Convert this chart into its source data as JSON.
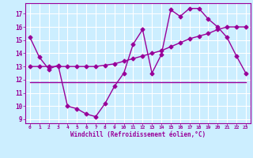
{
  "x": [
    0,
    1,
    2,
    3,
    4,
    5,
    6,
    7,
    8,
    9,
    10,
    11,
    12,
    13,
    14,
    15,
    16,
    17,
    18,
    19,
    20,
    21,
    22,
    23
  ],
  "line1": [
    15.2,
    13.7,
    12.8,
    13.1,
    10.0,
    9.8,
    9.4,
    9.2,
    10.2,
    11.5,
    12.5,
    14.7,
    15.8,
    12.5,
    13.9,
    17.3,
    16.8,
    17.4,
    17.4,
    16.6,
    16.0,
    15.2,
    13.8,
    12.5
  ],
  "line2": [
    13.0,
    13.0,
    13.0,
    13.0,
    13.0,
    13.0,
    13.0,
    13.0,
    13.1,
    13.2,
    13.4,
    13.6,
    13.8,
    14.0,
    14.2,
    14.5,
    14.8,
    15.1,
    15.3,
    15.5,
    15.8,
    16.0,
    16.0,
    16.0
  ],
  "line3": [
    11.8,
    11.8,
    11.8,
    11.8,
    11.8,
    11.8,
    11.8,
    11.8,
    11.8,
    11.8,
    11.8,
    11.8,
    11.8,
    11.8,
    11.8,
    11.8,
    11.8,
    11.8,
    11.8,
    11.8,
    11.8,
    11.8,
    11.8,
    11.8
  ],
  "line_color": "#990099",
  "bg_color": "#cceeff",
  "grid_color": "#aaddee",
  "xlabel": "Windchill (Refroidissement éolien,°C)",
  "xlim": [
    -0.5,
    23.5
  ],
  "ylim": [
    8.7,
    17.8
  ],
  "xticks": [
    0,
    1,
    2,
    3,
    4,
    5,
    6,
    7,
    8,
    9,
    10,
    11,
    12,
    13,
    14,
    15,
    16,
    17,
    18,
    19,
    20,
    21,
    22,
    23
  ],
  "yticks": [
    9,
    10,
    11,
    12,
    13,
    14,
    15,
    16,
    17
  ],
  "marker": "D",
  "markersize": 2.5,
  "linewidth": 1.0
}
